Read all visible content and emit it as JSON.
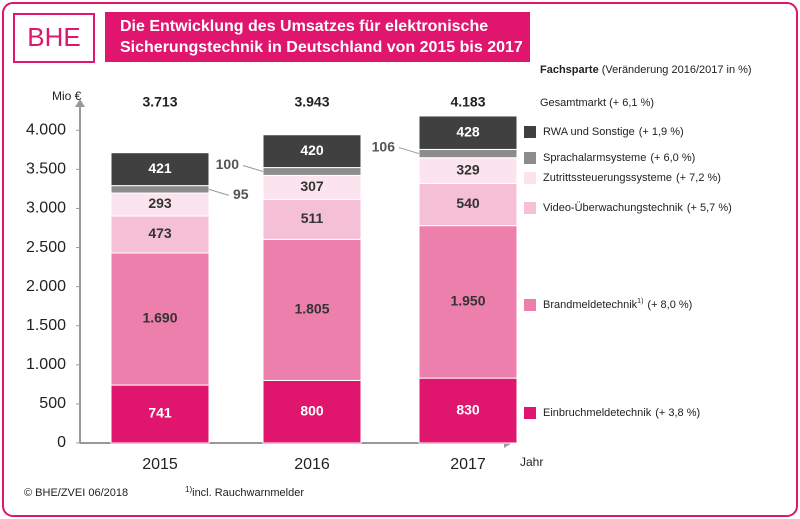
{
  "logo": "BHE",
  "chart_data": {
    "type": "stacked_bar",
    "title": [
      "Die Entwicklung des Umsatzes für elektronische",
      "Sicherungstechnik in Deutschland von 2015 bis 2017"
    ],
    "ylabel": "Mio €",
    "xlabel": "Jahr",
    "legend_title": "Fachsparte",
    "legend_subtitle": "(Veränderung 2016/2017 in %)",
    "categories": [
      "2015",
      "2016",
      "2017"
    ],
    "ylim": [
      0,
      4400
    ],
    "yticks": [
      0,
      500,
      {
        "value": 1000,
        "label": "1.000"
      },
      {
        "value": 1500,
        "label": "1.500"
      },
      {
        "value": 2000,
        "label": "2.000"
      },
      {
        "value": 2500,
        "label": "2.500"
      },
      {
        "value": 3000,
        "label": "3.000"
      },
      {
        "value": 3500,
        "label": "3.500"
      },
      {
        "value": 4000,
        "label": "4.000"
      }
    ],
    "totals": {
      "name": "Gesamtmarkt",
      "change": "(+ 6,1 %)",
      "values": [
        3713,
        3943,
        4183
      ],
      "value_labels": [
        "3.713",
        "3.943",
        "4.183"
      ]
    },
    "series": [
      {
        "name": "Einbruchmeldetechnik",
        "change": "(+ 3,8 %)",
        "color": "#e0156e",
        "values": [
          741,
          800,
          830
        ],
        "value_labels": [
          "741",
          "800",
          "830"
        ]
      },
      {
        "name": "Brandmeldetechnik",
        "footnote_mark": "1)",
        "change": "(+ 8,0 %)",
        "color": "#ec7fab",
        "values": [
          1690,
          1805,
          1950
        ],
        "value_labels": [
          "1.690",
          "1.805",
          "1.950"
        ]
      },
      {
        "name": "Video-Überwachungstechnik",
        "change": "(+ 5,7 %)",
        "color": "#f5bfd6",
        "values": [
          473,
          511,
          540
        ],
        "value_labels": [
          "473",
          "511",
          "540"
        ]
      },
      {
        "name": "Zutrittssteuerungssysteme",
        "change": "(+ 7,2 %)",
        "color": "#fce4ee",
        "values": [
          293,
          307,
          329
        ],
        "value_labels": [
          "293",
          "307",
          "329"
        ]
      },
      {
        "name": "Sprachalarmsysteme",
        "change": "(+ 6,0 %)",
        "color": "#8c8c8c",
        "values": [
          95,
          100,
          106
        ],
        "value_labels": [
          "95",
          "100",
          "106"
        ]
      },
      {
        "name": "RWA und Sonstige",
        "change": "(+ 1,9 %)",
        "color": "#404040",
        "values": [
          421,
          420,
          428
        ],
        "value_labels": [
          "421",
          "420",
          "428"
        ]
      }
    ]
  },
  "footer": {
    "source": "© BHE/ZVEI 06/2018",
    "footnote_mark": "1)",
    "footnote": "incl. Rauchwarnmelder"
  }
}
